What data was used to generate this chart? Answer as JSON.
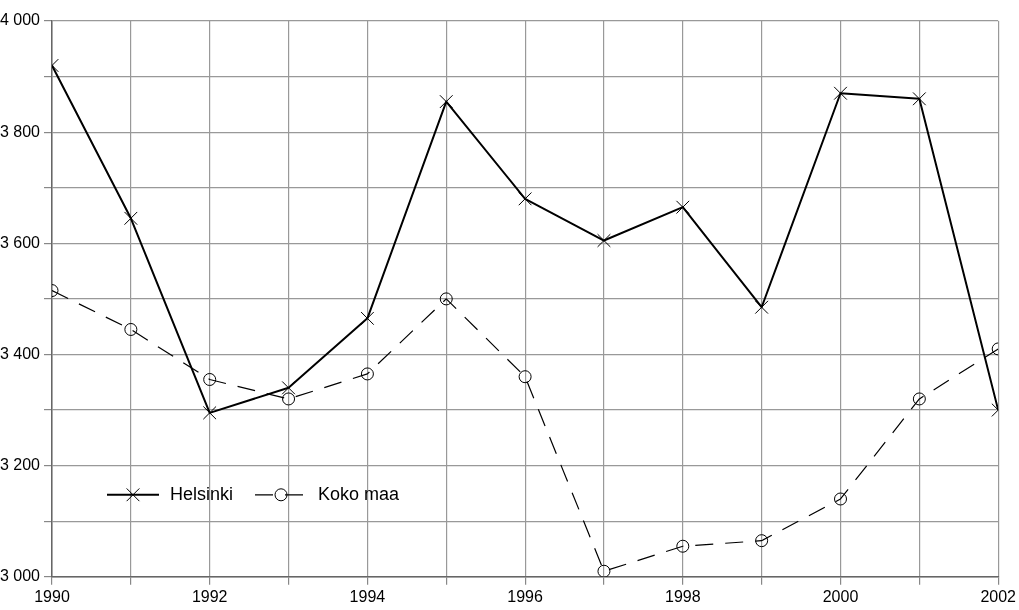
{
  "chart_data": {
    "type": "line",
    "x": [
      1990,
      1991,
      1992,
      1993,
      1994,
      1995,
      1996,
      1997,
      1998,
      1999,
      2000,
      2001,
      2002
    ],
    "series": [
      {
        "name": "Helsinki",
        "color": "#000000",
        "marker": "cross",
        "line_style": "solid",
        "values": [
          3920,
          3645,
          3295,
          3340,
          3465,
          3855,
          3680,
          3605,
          3665,
          3485,
          3870,
          3860,
          3300
        ]
      },
      {
        "name": "Koko maa",
        "color": "#000000",
        "marker": "circle",
        "line_style": "dashed",
        "values": [
          3515,
          3445,
          3355,
          3320,
          3365,
          3500,
          3360,
          3010,
          3055,
          3065,
          3140,
          3320,
          3410
        ]
      }
    ],
    "xlim": [
      1990,
      2002
    ],
    "xticks": [
      1990,
      {
        "value": 1991,
        "label": null
      },
      1992,
      {
        "value": 1993,
        "label": null
      },
      1994,
      {
        "value": 1995,
        "label": null
      },
      1996,
      {
        "value": 1997,
        "label": null
      },
      1998,
      {
        "value": 1999,
        "label": null
      },
      2000,
      {
        "value": 2001,
        "label": null
      },
      2002
    ],
    "ylim": [
      3000,
      4000
    ],
    "yticks": [
      {
        "value": 3000,
        "label": "3 000"
      },
      {
        "value": 3100,
        "label": null
      },
      {
        "value": 3200,
        "label": "3 200"
      },
      {
        "value": 3300,
        "label": null
      },
      {
        "value": 3400,
        "label": "3 400"
      },
      {
        "value": 3500,
        "label": null
      },
      {
        "value": 3600,
        "label": "3 600"
      },
      {
        "value": 3700,
        "label": null
      },
      {
        "value": 3800,
        "label": "3 800"
      },
      {
        "value": 3900,
        "label": null
      },
      {
        "value": 4000,
        "label": "4 000"
      }
    ],
    "grid": true,
    "legend": "bottom left"
  }
}
